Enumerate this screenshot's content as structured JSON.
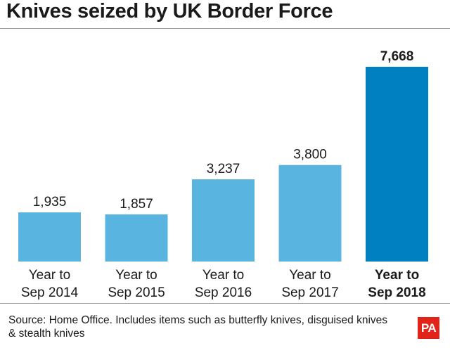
{
  "title": "Knives seized by UK Border Force",
  "source": "Source: Home Office. Includes items such as butterfly knives, disguised knives & stealth knives",
  "logo_text": "PA",
  "colors": {
    "bar": "#5ab4e0",
    "bar_highlight": "#0080c0",
    "text": "#1a1a1a",
    "logo": "#e2231a"
  },
  "chart_data": {
    "type": "bar",
    "title": "Knives seized by UK Border Force",
    "categories": [
      "Year to Sep 2014",
      "Year to Sep 2015",
      "Year to Sep 2016",
      "Year to Sep 2017",
      "Year to Sep 2018"
    ],
    "category_lines": [
      [
        "Year to",
        "Sep 2014"
      ],
      [
        "Year to",
        "Sep 2015"
      ],
      [
        "Year to",
        "Sep 2016"
      ],
      [
        "Year to",
        "Sep 2017"
      ],
      [
        "Year to",
        "Sep 2018"
      ]
    ],
    "values": [
      1935,
      1857,
      3237,
      3800,
      7668
    ],
    "value_labels": [
      "1,935",
      "1,857",
      "3,237",
      "3,800",
      "7,668"
    ],
    "highlight_index": 4,
    "xlabel": "",
    "ylabel": "",
    "ylim": [
      0,
      7668
    ],
    "grid": false,
    "legend": "none"
  }
}
